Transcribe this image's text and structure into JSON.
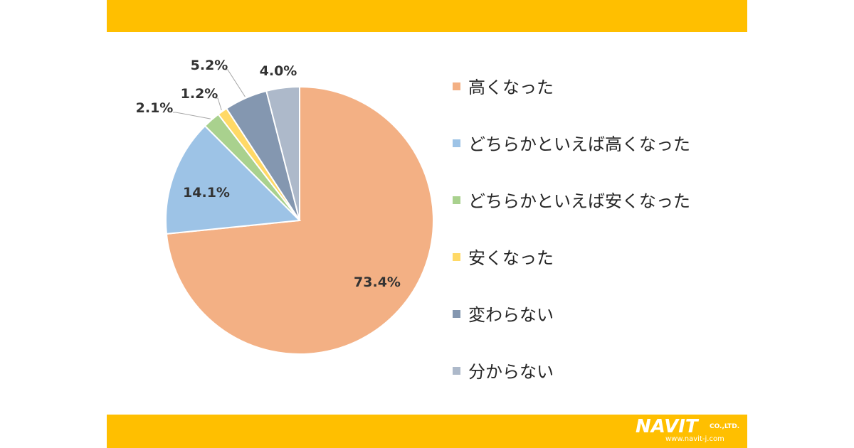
{
  "chart_data": {
    "type": "pie",
    "categories": [
      "高くなった",
      "どちらかといえば高くなった",
      "どちらかといえば安くなった",
      "安くなった",
      "変わらない",
      "分からない"
    ],
    "values": [
      73.4,
      14.1,
      2.1,
      1.2,
      5.2,
      4.0
    ],
    "data_labels": [
      "73.4%",
      "14.1%",
      "2.1%",
      "1.2%",
      "5.2%",
      "4.0%"
    ],
    "colors": [
      "#F3B084",
      "#9DC3E6",
      "#A9D18E",
      "#FFD966",
      "#8497B0",
      "#ADB9CA"
    ],
    "start_angle_deg": 0,
    "direction": "clockwise",
    "legend_position": "right"
  },
  "branding": {
    "logo_text": "NAVIT",
    "logo_suffix": "CO.,LTD.",
    "url": "www.navit-j.com",
    "band_color": "#FFBF00"
  }
}
